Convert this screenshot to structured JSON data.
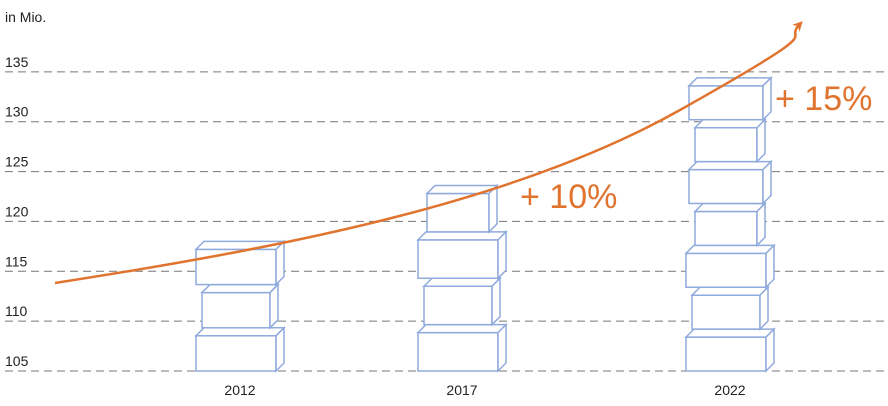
{
  "chart_data": {
    "type": "bar",
    "unit_label": "in Mio.",
    "categories": [
      "2012",
      "2017",
      "2022"
    ],
    "values": [
      118,
      123.6,
      134.4
    ],
    "color": "#8faadc",
    "ylim": [
      105,
      140
    ],
    "yticks": [
      105,
      110,
      115,
      120,
      125,
      130,
      135
    ],
    "grid": true,
    "annotations": [
      "+ 10%",
      "+ 15%"
    ]
  }
}
